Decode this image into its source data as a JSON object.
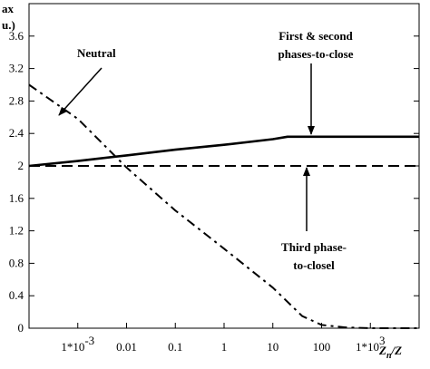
{
  "chart_data": {
    "type": "line",
    "ylabel_lines": [
      "ax",
      "u.)"
    ],
    "xlabel": "Zn/Z",
    "x_scale": "log",
    "xlim": [
      0.0001,
      10000
    ],
    "ylim": [
      0,
      4.0
    ],
    "x_ticks": [
      {
        "value": 0.001,
        "label": "1*10",
        "exp": "-3"
      },
      {
        "value": 0.01,
        "label": "0.01",
        "exp": ""
      },
      {
        "value": 0.1,
        "label": "0.1",
        "exp": ""
      },
      {
        "value": 1,
        "label": "1",
        "exp": ""
      },
      {
        "value": 10,
        "label": "10",
        "exp": ""
      },
      {
        "value": 100,
        "label": "100",
        "exp": ""
      },
      {
        "value": 1000,
        "label": "1*10",
        "exp": "3"
      }
    ],
    "y_ticks": [
      {
        "value": 0,
        "label": "0"
      },
      {
        "value": 0.4,
        "label": "0.4"
      },
      {
        "value": 0.8,
        "label": "0.8"
      },
      {
        "value": 1.2,
        "label": "1.2"
      },
      {
        "value": 1.6,
        "label": "1.6"
      },
      {
        "value": 2.0,
        "label": "2"
      },
      {
        "value": 2.4,
        "label": "2.4"
      },
      {
        "value": 2.8,
        "label": "2.8"
      },
      {
        "value": 3.2,
        "label": "3.2"
      },
      {
        "value": 3.6,
        "label": "3.6"
      }
    ],
    "series": [
      {
        "key": "first-second",
        "style": "solid",
        "x": [
          0.0001,
          0.001,
          0.01,
          0.1,
          1,
          10,
          20,
          100,
          1000,
          10000
        ],
        "y": [
          2.0,
          2.06,
          2.13,
          2.2,
          2.26,
          2.33,
          2.36,
          2.36,
          2.36,
          2.36
        ]
      },
      {
        "key": "third",
        "style": "dashed",
        "x": [
          0.0001,
          10000
        ],
        "y": [
          2.0,
          2.0
        ]
      },
      {
        "key": "neutral",
        "style": "dashdot",
        "x": [
          0.0001,
          0.001,
          0.01,
          0.1,
          1,
          10,
          40,
          100,
          300,
          1000,
          10000
        ],
        "y": [
          3.0,
          2.58,
          1.98,
          1.45,
          0.98,
          0.5,
          0.15,
          0.04,
          0.01,
          0.0,
          0.0
        ]
      }
    ],
    "annotations": [
      {
        "key": "neutral",
        "lines": [
          "Neutral"
        ]
      },
      {
        "key": "first-second",
        "lines": [
          "First & second",
          "phases-to-close"
        ]
      },
      {
        "key": "third",
        "lines": [
          "Third  phase-",
          "to-closel"
        ]
      }
    ]
  }
}
